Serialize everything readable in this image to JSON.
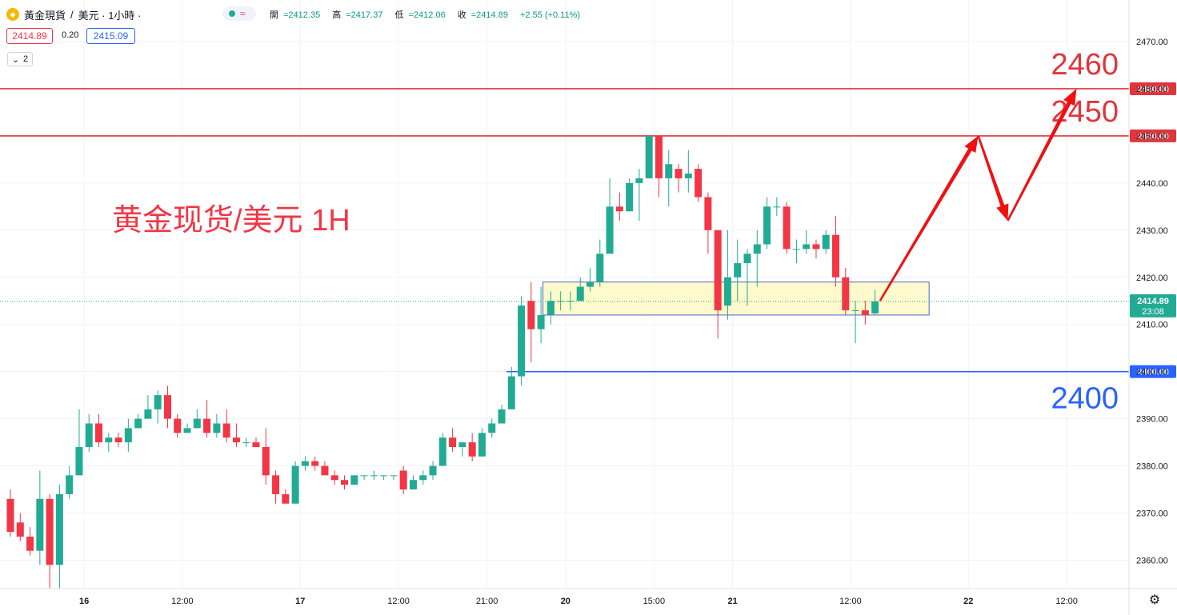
{
  "header": {
    "symbol": "黃金現貨",
    "separator": "/",
    "quote": "美元 · 1小時 ·",
    "wave_glyph": "≈",
    "ohlc": {
      "open_label": "開",
      "open": "=2412.35",
      "high_label": "高",
      "high": "=2417.37",
      "low_label": "低",
      "low": "=2412.06",
      "close_label": "收",
      "close": "=2414.89",
      "change": "+2.55 (+0.11%)"
    },
    "sell_price": "2414.89",
    "spread": "0.20",
    "buy_price": "2415.09",
    "indicator_count": "2"
  },
  "colors": {
    "up": "#22ab94",
    "down": "#f23645",
    "resistance": "#e0353d",
    "support": "#2962ff",
    "zone_fill": "#fff9c4",
    "zone_border": "#4a63c5",
    "arrow": "#f01010"
  },
  "chart_data": {
    "type": "candlestick",
    "title": "黃金現貨 / 美元 · 1小時",
    "ylim": [
      2355,
      2473
    ],
    "y_ticks": [
      "2360.00",
      "2370.00",
      "2380.00",
      "2390.00",
      "2400.00",
      "2410.00",
      "2420.00",
      "2430.00",
      "2440.00",
      "2450.00",
      "2460.00",
      "2470.00"
    ],
    "x_ticks": [
      {
        "label": "16",
        "at": 7.5
      },
      {
        "label": "12:00",
        "at": 17.5
      },
      {
        "label": "17",
        "at": 29.5
      },
      {
        "label": "12:00",
        "at": 39.5
      },
      {
        "label": "21:00",
        "at": 48.5
      },
      {
        "label": "20",
        "at": 56.5
      },
      {
        "label": "15:00",
        "at": 65.5
      },
      {
        "label": "21",
        "at": 73.5
      },
      {
        "label": "12:00",
        "at": 85.5
      },
      {
        "label": "22",
        "at": 97.5
      },
      {
        "label": "12:00",
        "at": 107.5
      }
    ],
    "candles": [
      [
        2373,
        2366,
        2375,
        2365
      ],
      [
        2368,
        2365,
        2370,
        2364
      ],
      [
        2365,
        2362,
        2367,
        2361
      ],
      [
        2362,
        2373,
        2379,
        2359
      ],
      [
        2373,
        2359,
        2374,
        2354
      ],
      [
        2359,
        2374,
        2376,
        2354
      ],
      [
        2374,
        2378,
        2380,
        2373
      ],
      [
        2378,
        2384,
        2392,
        2378
      ],
      [
        2384,
        2389,
        2391,
        2383
      ],
      [
        2389,
        2385,
        2391,
        2384
      ],
      [
        2385,
        2386,
        2387,
        2383
      ],
      [
        2386,
        2385,
        2387,
        2384
      ],
      [
        2385,
        2388,
        2390,
        2383
      ],
      [
        2388,
        2390,
        2391,
        2388
      ],
      [
        2390,
        2392,
        2395,
        2390
      ],
      [
        2392,
        2395,
        2396,
        2389
      ],
      [
        2395,
        2390,
        2397,
        2388
      ],
      [
        2390,
        2387,
        2391,
        2386
      ],
      [
        2387,
        2388,
        2389,
        2387
      ],
      [
        2388,
        2390,
        2392,
        2388
      ],
      [
        2390,
        2387,
        2394,
        2386
      ],
      [
        2387,
        2389,
        2391,
        2386
      ],
      [
        2389,
        2386,
        2392,
        2385
      ],
      [
        2386,
        2385,
        2389,
        2384
      ],
      [
        2385,
        2385,
        2386,
        2384
      ],
      [
        2385,
        2384,
        2386,
        2384
      ],
      [
        2384,
        2378,
        2388,
        2376
      ],
      [
        2378,
        2374,
        2379,
        2372
      ],
      [
        2374,
        2372,
        2375,
        2372
      ],
      [
        2372,
        2380,
        2381,
        2372
      ],
      [
        2380,
        2381,
        2382,
        2379
      ],
      [
        2381,
        2380,
        2382,
        2379
      ],
      [
        2380,
        2378,
        2381,
        2378
      ],
      [
        2378,
        2377,
        2379,
        2376
      ],
      [
        2377,
        2376,
        2378,
        2375
      ],
      [
        2376,
        2378,
        2378,
        2376
      ],
      [
        2378,
        2378,
        2378,
        2377
      ],
      [
        2378,
        2378,
        2379,
        2377
      ],
      [
        2378,
        2378,
        2378,
        2377
      ],
      [
        2378,
        2378,
        2378,
        2377
      ],
      [
        2379,
        2375,
        2380,
        2374
      ],
      [
        2375,
        2377,
        2378,
        2375
      ],
      [
        2377,
        2378,
        2379,
        2376
      ],
      [
        2378,
        2380,
        2381,
        2377
      ],
      [
        2380,
        2386,
        2387,
        2380
      ],
      [
        2386,
        2384,
        2388,
        2383
      ],
      [
        2384,
        2385,
        2385,
        2382
      ],
      [
        2385,
        2382,
        2387,
        2381
      ],
      [
        2382,
        2387,
        2388,
        2382
      ],
      [
        2387,
        2389,
        2390,
        2386
      ],
      [
        2389,
        2392,
        2393,
        2389
      ],
      [
        2392,
        2399,
        2401,
        2392
      ],
      [
        2399,
        2414,
        2416,
        2397
      ],
      [
        2415,
        2409,
        2419,
        2402
      ],
      [
        2409,
        2412,
        2418,
        2406
      ],
      [
        2412,
        2415,
        2417,
        2410
      ],
      [
        2415,
        2415,
        2417,
        2413
      ],
      [
        2415,
        2415,
        2417,
        2413
      ],
      [
        2415,
        2418,
        2420,
        2415
      ],
      [
        2418,
        2419,
        2422,
        2417
      ],
      [
        2419,
        2425,
        2428,
        2418
      ],
      [
        2425,
        2435,
        2441,
        2429
      ],
      [
        2435,
        2434,
        2438,
        2432
      ],
      [
        2434,
        2440,
        2441,
        2434
      ],
      [
        2440,
        2441,
        2443,
        2432
      ],
      [
        2441,
        2450,
        2450,
        2441
      ],
      [
        2450,
        2441,
        2450,
        2437
      ],
      [
        2441,
        2444,
        2447,
        2435
      ],
      [
        2443,
        2441,
        2444,
        2438
      ],
      [
        2441,
        2442,
        2447,
        2438
      ],
      [
        2443,
        2437,
        2444,
        2436
      ],
      [
        2437,
        2430,
        2438,
        2425
      ],
      [
        2430,
        2413,
        2430,
        2407
      ],
      [
        2414,
        2420,
        2430,
        2411
      ],
      [
        2420,
        2423,
        2428,
        2415
      ],
      [
        2423,
        2425,
        2426,
        2414
      ],
      [
        2425,
        2427,
        2430,
        2418
      ],
      [
        2427,
        2435,
        2437,
        2426
      ],
      [
        2435,
        2435,
        2437,
        2433
      ],
      [
        2435,
        2426,
        2436,
        2425
      ],
      [
        2426,
        2426,
        2428,
        2423
      ],
      [
        2426,
        2427,
        2430,
        2425
      ],
      [
        2427,
        2426,
        2428,
        2424
      ],
      [
        2426,
        2429,
        2430,
        2425
      ],
      [
        2429,
        2420,
        2433,
        2418
      ],
      [
        2420,
        2413,
        2422,
        2412
      ],
      [
        2413,
        2413,
        2415,
        2406
      ],
      [
        2413,
        2412,
        2415,
        2410
      ],
      [
        2412.35,
        2414.89,
        2417.37,
        2412.06
      ]
    ],
    "levels": [
      {
        "price": 2460,
        "label": "2460",
        "axis_label": "2460.00",
        "kind": "resistance"
      },
      {
        "price": 2450,
        "label": "2450",
        "axis_label": "2450.00",
        "kind": "resistance"
      },
      {
        "price": 2400,
        "label": "2400",
        "axis_label": "2400.00",
        "kind": "support"
      }
    ],
    "zone": {
      "from_bar": 54.2,
      "to_bar": 93.5,
      "top": 2419,
      "bottom": 2412
    },
    "last_price": {
      "price": 2414.89,
      "label": "2414.89",
      "countdown": "23:08"
    },
    "annotation": "黄金现货/美元 1H",
    "forecast_path": [
      [
        88.5,
        2415
      ],
      [
        98.5,
        2450
      ],
      [
        101.5,
        2432
      ],
      [
        108.5,
        2460
      ]
    ]
  }
}
